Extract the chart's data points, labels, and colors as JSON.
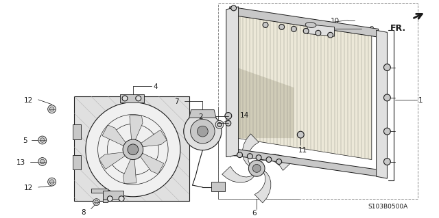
{
  "bg_color": "#ffffff",
  "line_color": "#1a1a1a",
  "diagram_code_text": "S103B0500A",
  "fin_color": "#e8e4d8",
  "gray_light": "#e0e0e0",
  "gray_mid": "#c8c8c8",
  "gray_dark": "#a0a0a0"
}
